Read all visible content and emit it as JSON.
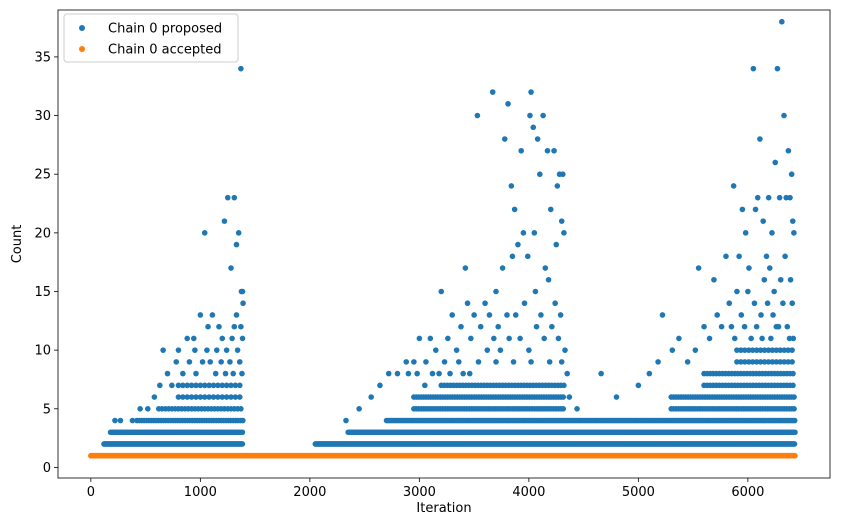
{
  "chart_data": {
    "type": "scatter",
    "title": "",
    "xlabel": "Iteration",
    "ylabel": "Count",
    "xlim": [
      -300,
      6750
    ],
    "ylim": [
      -0.9,
      39.0
    ],
    "xticks": [
      0,
      1000,
      2000,
      3000,
      4000,
      5000,
      6000
    ],
    "yticks": [
      0,
      5,
      10,
      15,
      20,
      25,
      30,
      35
    ],
    "grid": false,
    "legend_position": "top-left",
    "series": [
      {
        "name": "Chain 0 proposed",
        "color": "#1f77b4",
        "points": [
          [
            1370,
            34
          ],
          [
            1250,
            23
          ],
          [
            1310,
            23
          ],
          [
            1220,
            21
          ],
          [
            1040,
            20
          ],
          [
            1350,
            20
          ],
          [
            1330,
            19
          ],
          [
            1280,
            17
          ],
          [
            1375,
            15
          ],
          [
            1385,
            15
          ],
          [
            1390,
            14
          ],
          [
            1000,
            13
          ],
          [
            1110,
            13
          ],
          [
            1330,
            13
          ],
          [
            1070,
            12
          ],
          [
            1170,
            12
          ],
          [
            1310,
            12
          ],
          [
            1370,
            12
          ],
          [
            880,
            11
          ],
          [
            940,
            11
          ],
          [
            1200,
            11
          ],
          [
            1290,
            11
          ],
          [
            1385,
            11
          ],
          [
            660,
            10
          ],
          [
            800,
            10
          ],
          [
            950,
            10
          ],
          [
            1060,
            10
          ],
          [
            1150,
            10
          ],
          [
            1240,
            10
          ],
          [
            1340,
            10
          ],
          [
            3530,
            30
          ],
          [
            3670,
            32
          ],
          [
            3780,
            28
          ],
          [
            3810,
            31
          ],
          [
            3840,
            24
          ],
          [
            3870,
            22
          ],
          [
            3930,
            27
          ],
          [
            3950,
            20
          ],
          [
            4020,
            32
          ],
          [
            4040,
            29
          ],
          [
            4080,
            28
          ],
          [
            4010,
            30
          ],
          [
            4130,
            30
          ],
          [
            4170,
            27
          ],
          [
            4230,
            27
          ],
          [
            4100,
            25
          ],
          [
            4280,
            25
          ],
          [
            4310,
            25
          ],
          [
            4200,
            22
          ],
          [
            4260,
            24
          ],
          [
            4300,
            21
          ],
          [
            3420,
            17
          ],
          [
            3200,
            15
          ],
          [
            3440,
            14
          ],
          [
            3600,
            14
          ],
          [
            3700,
            15
          ],
          [
            3760,
            17
          ],
          [
            3850,
            18
          ],
          [
            3900,
            19
          ],
          [
            3990,
            18
          ],
          [
            4050,
            20
          ],
          [
            4150,
            17
          ],
          [
            4250,
            19
          ],
          [
            4320,
            20
          ],
          [
            3300,
            13
          ],
          [
            3380,
            12
          ],
          [
            3500,
            13
          ],
          [
            3560,
            12
          ],
          [
            3640,
            13
          ],
          [
            3720,
            12
          ],
          [
            3800,
            13
          ],
          [
            3880,
            13
          ],
          [
            3960,
            14
          ],
          [
            4060,
            15
          ],
          [
            4110,
            13
          ],
          [
            4180,
            16
          ],
          [
            4240,
            14
          ],
          [
            4290,
            13
          ],
          [
            3000,
            11
          ],
          [
            3100,
            11
          ],
          [
            3260,
            11
          ],
          [
            3340,
            10
          ],
          [
            3470,
            11
          ],
          [
            3620,
            10
          ],
          [
            3680,
            11
          ],
          [
            3740,
            10
          ],
          [
            3820,
            11
          ],
          [
            3920,
            11
          ],
          [
            4000,
            10
          ],
          [
            4070,
            12
          ],
          [
            4140,
            11
          ],
          [
            4210,
            12
          ],
          [
            4270,
            11
          ],
          [
            4330,
            10
          ],
          [
            2880,
            9
          ],
          [
            2950,
            9
          ],
          [
            3060,
            9
          ],
          [
            3150,
            10
          ],
          [
            3230,
            9
          ],
          [
            3360,
            9
          ],
          [
            4440,
            5
          ],
          [
            4350,
            8
          ],
          [
            4370,
            6
          ],
          [
            4660,
            8
          ],
          [
            4800,
            6
          ],
          [
            5000,
            7
          ],
          [
            5100,
            8
          ],
          [
            5180,
            9
          ],
          [
            5220,
            13
          ],
          [
            5310,
            10
          ],
          [
            5370,
            11
          ],
          [
            5450,
            9
          ],
          [
            5520,
            10
          ],
          [
            5550,
            17
          ],
          [
            5600,
            12
          ],
          [
            5650,
            11
          ],
          [
            5690,
            16
          ],
          [
            5720,
            13
          ],
          [
            5760,
            12
          ],
          [
            5800,
            18
          ],
          [
            5830,
            14
          ],
          [
            5870,
            24
          ],
          [
            5900,
            15
          ],
          [
            5920,
            18
          ],
          [
            5950,
            22
          ],
          [
            5980,
            20
          ],
          [
            6010,
            17
          ],
          [
            6050,
            34
          ],
          [
            6070,
            22
          ],
          [
            6090,
            23
          ],
          [
            6110,
            28
          ],
          [
            6140,
            21
          ],
          [
            6170,
            18
          ],
          [
            6190,
            23
          ],
          [
            6220,
            20
          ],
          [
            6250,
            26
          ],
          [
            6270,
            34
          ],
          [
            6290,
            23
          ],
          [
            6310,
            38
          ],
          [
            6330,
            30
          ],
          [
            6350,
            23
          ],
          [
            6370,
            27
          ],
          [
            6385,
            23
          ],
          [
            6400,
            25
          ],
          [
            6410,
            21
          ],
          [
            6420,
            20
          ],
          [
            6150,
            16
          ],
          [
            6200,
            17
          ],
          [
            6240,
            15
          ],
          [
            6300,
            16
          ],
          [
            6340,
            18
          ],
          [
            6390,
            16
          ],
          [
            6000,
            15
          ],
          [
            6060,
            14
          ],
          [
            6120,
            13
          ],
          [
            6180,
            14
          ],
          [
            6230,
            13
          ],
          [
            6280,
            12
          ],
          [
            6320,
            14
          ],
          [
            6360,
            12
          ],
          [
            6405,
            14
          ],
          [
            5850,
            12
          ],
          [
            5880,
            11
          ],
          [
            5940,
            13
          ],
          [
            5970,
            12
          ],
          [
            6030,
            11
          ],
          [
            6080,
            12
          ],
          [
            6130,
            11
          ],
          [
            6210,
            11
          ],
          [
            6260,
            12
          ],
          [
            6380,
            11
          ],
          [
            6415,
            11
          ],
          [
            220,
            4
          ],
          [
            270,
            4
          ],
          [
            380,
            4
          ],
          [
            450,
            5
          ],
          [
            520,
            5
          ],
          [
            580,
            6
          ],
          [
            630,
            7
          ],
          [
            700,
            8
          ],
          [
            740,
            7
          ],
          [
            780,
            9
          ],
          [
            840,
            8
          ],
          [
            900,
            9
          ],
          [
            960,
            8
          ],
          [
            1020,
            9
          ],
          [
            1090,
            9
          ],
          [
            1140,
            8
          ],
          [
            1190,
            9
          ],
          [
            1230,
            8
          ],
          [
            1270,
            9
          ],
          [
            1300,
            8
          ],
          [
            1360,
            9
          ],
          [
            1380,
            8
          ],
          [
            2330,
            4
          ],
          [
            2450,
            5
          ],
          [
            2560,
            6
          ],
          [
            2640,
            7
          ],
          [
            2720,
            8
          ],
          [
            2800,
            8
          ],
          [
            2900,
            8
          ],
          [
            2980,
            8
          ],
          [
            3050,
            7
          ],
          [
            3120,
            8
          ],
          [
            3180,
            8
          ],
          [
            3280,
            8
          ],
          [
            3400,
            8
          ],
          [
            3460,
            8
          ],
          [
            3540,
            9
          ],
          [
            3700,
            9
          ],
          [
            3860,
            9
          ],
          [
            4020,
            9
          ],
          [
            4190,
            9
          ],
          [
            4300,
            9
          ]
        ],
        "bands": [
          {
            "x0": 120,
            "x1": 1390,
            "step": 8,
            "levels": [
              2
            ]
          },
          {
            "x0": 180,
            "x1": 1390,
            "step": 14,
            "levels": [
              3
            ]
          },
          {
            "x0": 420,
            "x1": 1390,
            "step": 22,
            "levels": [
              4
            ]
          },
          {
            "x0": 620,
            "x1": 1390,
            "step": 30,
            "levels": [
              5
            ]
          },
          {
            "x0": 800,
            "x1": 1390,
            "step": 40,
            "levels": [
              6,
              7
            ]
          },
          {
            "x0": 2050,
            "x1": 6430,
            "step": 8,
            "levels": [
              2
            ]
          },
          {
            "x0": 2350,
            "x1": 6430,
            "step": 12,
            "levels": [
              3
            ]
          },
          {
            "x0": 2700,
            "x1": 6430,
            "step": 16,
            "levels": [
              4
            ]
          },
          {
            "x0": 2950,
            "x1": 4330,
            "step": 22,
            "levels": [
              5,
              6
            ]
          },
          {
            "x0": 3200,
            "x1": 4330,
            "step": 28,
            "levels": [
              7
            ]
          },
          {
            "x0": 5300,
            "x1": 6430,
            "step": 22,
            "levels": [
              5,
              6
            ]
          },
          {
            "x0": 5600,
            "x1": 6430,
            "step": 28,
            "levels": [
              7,
              8
            ]
          },
          {
            "x0": 5900,
            "x1": 6430,
            "step": 36,
            "levels": [
              9,
              10
            ]
          }
        ]
      },
      {
        "name": "Chain 0 accepted",
        "color": "#ff7f0e",
        "line": {
          "x0": 0,
          "x1": 6430,
          "y": 1
        }
      }
    ]
  }
}
